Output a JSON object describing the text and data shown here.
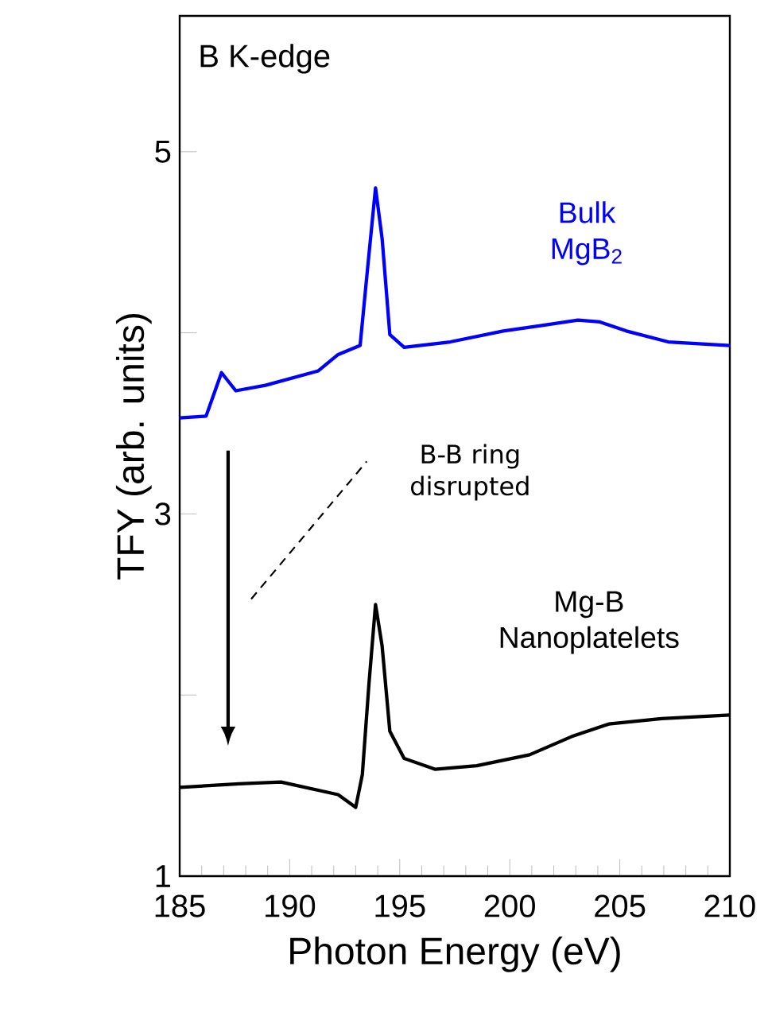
{
  "chart_data": {
    "type": "line",
    "xlabel": "Photon Energy (eV)",
    "ylabel": "TFY (arb. units)",
    "xlim": [
      185,
      210
    ],
    "ylim": [
      1,
      5.75
    ],
    "xticks": [
      185,
      190,
      195,
      200,
      205,
      210
    ],
    "yticks": [
      1,
      {
        "value": 2,
        "label": null
      },
      3,
      {
        "value": 4,
        "label": null
      },
      5
    ],
    "marker": "none",
    "line_style": "solid",
    "annotations": [
      {
        "text": "B K-edge"
      },
      {
        "text": "B-B ring disrupted"
      }
    ],
    "series": [
      {
        "name": "Bulk MgB$_{2}$",
        "color": "#0000ff",
        "x": [
          185,
          186.2,
          186.9,
          187.55,
          188.9,
          191.3,
          192.2,
          193.2,
          193.55,
          193.9,
          194.2,
          194.55,
          195.2,
          197.3,
          199.7,
          201.4,
          203.1,
          204.1,
          205.3,
          207.2,
          210
        ],
        "values": [
          3.53,
          3.54,
          3.78,
          3.68,
          3.71,
          3.79,
          3.88,
          3.93,
          4.37,
          4.8,
          4.52,
          3.99,
          3.92,
          3.95,
          4.01,
          4.04,
          4.07,
          4.06,
          4.01,
          3.95,
          3.93
        ]
      },
      {
        "name": "Mg-B Nanoplatelets",
        "color": "#000000",
        "x": [
          185,
          187.7,
          189.6,
          192.2,
          193.0,
          193.3,
          193.6,
          193.9,
          194.2,
          194.55,
          195.2,
          196.6,
          198.5,
          200.9,
          202.8,
          204.5,
          206.9,
          210
        ],
        "values": [
          1.49,
          1.51,
          1.52,
          1.45,
          1.38,
          1.56,
          2.06,
          2.5,
          2.27,
          1.8,
          1.65,
          1.59,
          1.61,
          1.67,
          1.77,
          1.84,
          1.87,
          1.89
        ]
      }
    ]
  }
}
